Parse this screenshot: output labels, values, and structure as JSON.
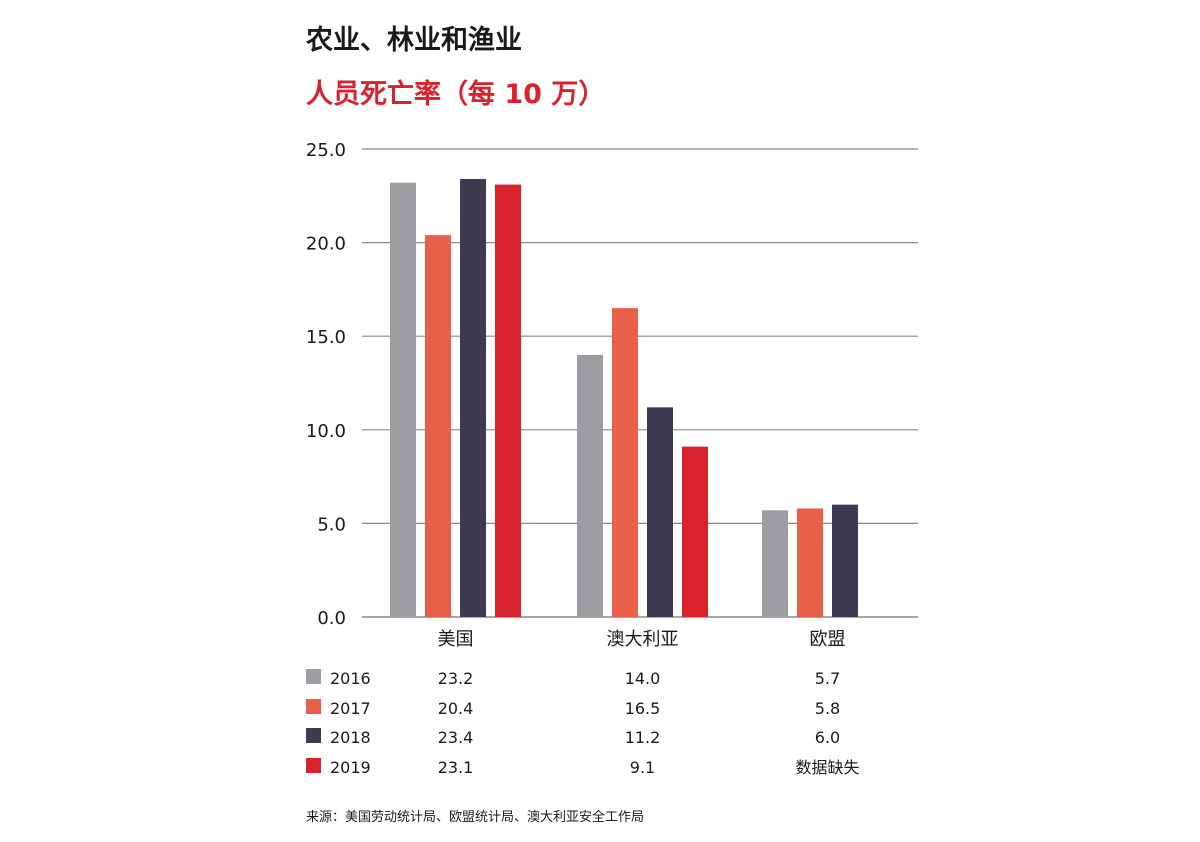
{
  "title": "农业、林业和渔业",
  "subtitle": "人员死亡率（每 10 万）",
  "source": "来源：美国劳动统计局、欧盟统计局、澳大利亚安全工作局",
  "chart_data": {
    "type": "bar",
    "categories": [
      "美国",
      "澳大利亚",
      "欧盟"
    ],
    "ylim": [
      0,
      25
    ],
    "yticks": [
      "0.0",
      "5.0",
      "10.0",
      "15.0",
      "20.0",
      "25.0"
    ],
    "grid": true,
    "series": [
      {
        "name": "2016",
        "color": "#9d9ca1",
        "values": [
          23.2,
          14.0,
          5.7
        ],
        "labels": [
          "23.2",
          "14.0",
          "5.7"
        ]
      },
      {
        "name": "2017",
        "color": "#e8604a",
        "values": [
          20.4,
          16.5,
          5.8
        ],
        "labels": [
          "20.4",
          "16.5",
          "5.8"
        ]
      },
      {
        "name": "2018",
        "color": "#3f3a52",
        "values": [
          23.4,
          11.2,
          6.0
        ],
        "labels": [
          "23.4",
          "11.2",
          "6.0"
        ]
      },
      {
        "name": "2019",
        "color": "#d9222b",
        "values": [
          23.1,
          9.1,
          null
        ],
        "labels": [
          "23.1",
          "9.1",
          "数据缺失"
        ]
      }
    ]
  }
}
